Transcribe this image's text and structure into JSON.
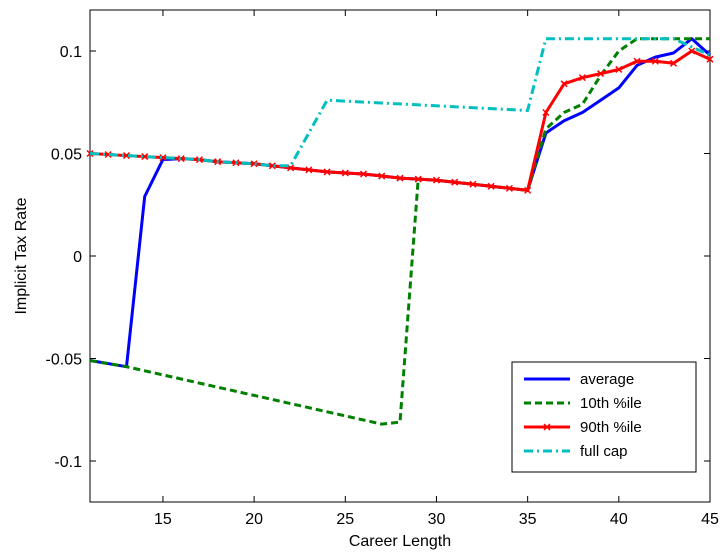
{
  "chart_data": {
    "type": "line",
    "title": "",
    "xlabel": "Career Length",
    "ylabel": "Implicit Tax Rate",
    "xlim": [
      11,
      45
    ],
    "ylim": [
      -0.12,
      0.12
    ],
    "xticks": [
      15,
      20,
      25,
      30,
      35,
      40,
      45
    ],
    "yticks": [
      -0.1,
      -0.05,
      0,
      0.05,
      0.1
    ],
    "ytick_labels": [
      "-0.1",
      "-0.05",
      "0",
      "0.05",
      "0.1"
    ],
    "grid": false,
    "legend_position": "bottom-right",
    "series": [
      {
        "name": "average",
        "color": "#0000ff",
        "style": "solid",
        "marker": "none",
        "x": [
          11,
          13,
          14,
          15,
          16,
          17,
          18,
          19,
          20,
          21,
          22,
          23,
          24,
          25,
          26,
          27,
          28,
          29,
          30,
          31,
          32,
          33,
          34,
          35,
          36,
          37,
          38,
          39,
          40,
          41,
          42,
          43,
          44,
          45
        ],
        "y": [
          -0.051,
          -0.054,
          0.029,
          0.047,
          0.0475,
          0.047,
          0.046,
          0.0455,
          0.045,
          0.044,
          0.043,
          0.042,
          0.041,
          0.0405,
          0.04,
          0.039,
          0.038,
          0.0375,
          0.037,
          0.036,
          0.035,
          0.034,
          0.033,
          0.032,
          0.06,
          0.066,
          0.07,
          0.076,
          0.082,
          0.093,
          0.097,
          0.099,
          0.106,
          0.098
        ]
      },
      {
        "name": "10th %ile",
        "color": "#008000",
        "style": "dashed",
        "marker": "none",
        "x": [
          11,
          13,
          14,
          15,
          16,
          17,
          18,
          19,
          20,
          21,
          22,
          23,
          24,
          25,
          26,
          27,
          28,
          29,
          30,
          31,
          32,
          33,
          34,
          35,
          36,
          37,
          38,
          39,
          40,
          41,
          42,
          43,
          44,
          45
        ],
        "y": [
          -0.051,
          -0.054,
          -0.056,
          -0.058,
          -0.06,
          -0.062,
          -0.064,
          -0.066,
          -0.068,
          -0.07,
          -0.072,
          -0.074,
          -0.076,
          -0.078,
          -0.08,
          -0.082,
          -0.081,
          0.0375,
          0.037,
          0.036,
          0.035,
          0.034,
          0.033,
          0.032,
          0.062,
          0.07,
          0.074,
          0.088,
          0.1,
          0.106,
          0.106,
          0.106,
          0.106,
          0.106
        ]
      },
      {
        "name": "90th %ile",
        "color": "#ff0000",
        "style": "solid",
        "marker": "x",
        "x": [
          11,
          12,
          13,
          14,
          15,
          16,
          17,
          18,
          19,
          20,
          21,
          22,
          23,
          24,
          25,
          26,
          27,
          28,
          29,
          30,
          31,
          32,
          33,
          34,
          35,
          36,
          37,
          38,
          39,
          40,
          41,
          42,
          43,
          44,
          45
        ],
        "y": [
          0.05,
          0.0495,
          0.049,
          0.0485,
          0.048,
          0.0475,
          0.047,
          0.046,
          0.0455,
          0.045,
          0.044,
          0.043,
          0.042,
          0.041,
          0.0405,
          0.04,
          0.039,
          0.038,
          0.0375,
          0.037,
          0.036,
          0.035,
          0.034,
          0.033,
          0.032,
          0.07,
          0.084,
          0.087,
          0.089,
          0.091,
          0.095,
          0.095,
          0.094,
          0.1,
          0.096
        ]
      },
      {
        "name": "full cap",
        "color": "#00bfbf",
        "style": "dashdot",
        "marker": "none",
        "x": [
          11,
          12,
          13,
          14,
          15,
          16,
          17,
          18,
          19,
          20,
          21,
          22,
          24,
          35,
          36,
          43,
          45
        ],
        "y": [
          0.05,
          0.0495,
          0.049,
          0.0485,
          0.048,
          0.0475,
          0.047,
          0.046,
          0.0455,
          0.045,
          0.044,
          0.044,
          0.076,
          0.071,
          0.106,
          0.106,
          0.098
        ]
      }
    ]
  }
}
